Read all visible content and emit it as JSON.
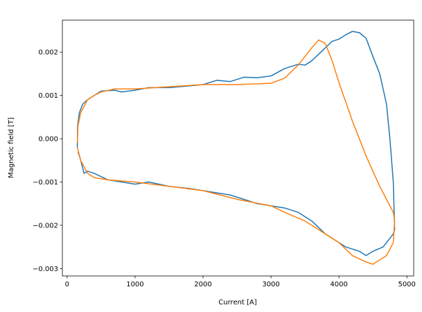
{
  "chart_data": {
    "type": "line",
    "xlabel": "Current [A]",
    "ylabel": "Magnetic field [T]",
    "xlim": [
      -70,
      5100
    ],
    "xticks": [
      0,
      1000,
      2000,
      3000,
      4000,
      5000
    ],
    "ylim": [
      -0.00317,
      0.00274
    ],
    "yticks": [
      {
        "value": -0.003,
        "label": "−0.003"
      },
      {
        "value": -0.002,
        "label": "−0.002"
      },
      {
        "value": -0.001,
        "label": "−0.001"
      },
      {
        "value": 0,
        "label": "0.000"
      },
      0.001,
      0.002
    ],
    "series": [
      {
        "color": "#1f77b4",
        "x": [
          150,
          155,
          180,
          230,
          300,
          400,
          500,
          700,
          800,
          1000,
          1200,
          1500,
          1800,
          2000,
          2200,
          2400,
          2600,
          2800,
          3000,
          3200,
          3400,
          3500,
          3600,
          3700,
          3800,
          3900,
          4000,
          4100,
          4200,
          4300,
          4400,
          4500,
          4600,
          4700,
          4750,
          4800,
          4820,
          4800,
          4750,
          4650,
          4500,
          4400,
          4300,
          4100,
          4000,
          3800,
          3600,
          3400,
          3200,
          3000,
          2800,
          2600,
          2400,
          2200,
          2000,
          1800,
          1500,
          1200,
          1000,
          800,
          600,
          400,
          300,
          250,
          200,
          160
        ],
        "values": [
          -0.0002,
          0.0003,
          0.0006,
          0.0008,
          0.0009,
          0.001,
          0.0011,
          0.00112,
          0.00108,
          0.00112,
          0.00118,
          0.00118,
          0.00122,
          0.00125,
          0.00135,
          0.00132,
          0.00142,
          0.00141,
          0.00145,
          0.00162,
          0.00172,
          0.0017,
          0.0018,
          0.00195,
          0.0021,
          0.00225,
          0.0023,
          0.0024,
          0.00248,
          0.00245,
          0.00232,
          0.0019,
          0.0015,
          0.0008,
          0.0,
          -0.001,
          -0.0021,
          -0.0022,
          -0.0023,
          -0.0025,
          -0.0026,
          -0.0027,
          -0.0026,
          -0.0025,
          -0.0024,
          -0.0022,
          -0.0019,
          -0.0017,
          -0.0016,
          -0.00155,
          -0.0015,
          -0.0014,
          -0.0013,
          -0.00125,
          -0.0012,
          -0.00115,
          -0.0011,
          -0.001,
          -0.00105,
          -0.001,
          -0.00095,
          -0.0008,
          -0.00075,
          -0.0008,
          -0.0005,
          -0.0003
        ]
      },
      {
        "color": "#ff7f0e",
        "x": [
          150,
          160,
          200,
          300,
          400,
          500,
          700,
          1000,
          1500,
          2000,
          2500,
          3000,
          3200,
          3400,
          3600,
          3700,
          3800,
          3900,
          4000,
          4200,
          4400,
          4600,
          4800,
          4820,
          4800,
          4700,
          4500,
          4400,
          4200,
          4000,
          3800,
          3500,
          3200,
          3000,
          2500,
          2000,
          1500,
          1000,
          600,
          400,
          300,
          200,
          150
        ],
        "values": [
          -0.0001,
          0.0003,
          0.0006,
          0.0009,
          0.001,
          0.00108,
          0.00115,
          0.00115,
          0.0012,
          0.00125,
          0.00125,
          0.00128,
          0.0014,
          0.0017,
          0.0021,
          0.00228,
          0.0022,
          0.0018,
          0.0013,
          0.0004,
          -0.0004,
          -0.0011,
          -0.0017,
          -0.0019,
          -0.0024,
          -0.0027,
          -0.0029,
          -0.00285,
          -0.0027,
          -0.0024,
          -0.0022,
          -0.0019,
          -0.0017,
          -0.00155,
          -0.0014,
          -0.0012,
          -0.0011,
          -0.001,
          -0.00095,
          -0.0009,
          -0.0008,
          -0.0005,
          -0.0002
        ]
      }
    ]
  }
}
